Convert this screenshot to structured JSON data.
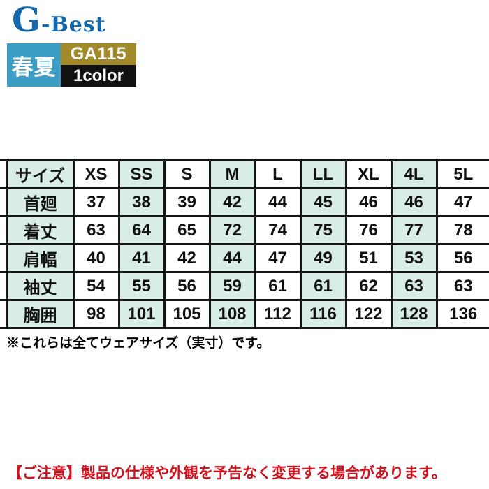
{
  "colors": {
    "logo-blue": "#1467AB",
    "teal": "#3E9DC2",
    "gold": "#A28A2C",
    "black-badge": "#111111",
    "mint": "#D9EDE7",
    "border": "#151515",
    "red": "#D1121F"
  },
  "header": {
    "logo_text": "G-Best",
    "season_label": "春夏",
    "product_code": "GA115",
    "color_count": "1color"
  },
  "size_table": {
    "columns": [
      "サイズ",
      "XS",
      "SS",
      "S",
      "M",
      "L",
      "LL",
      "XL",
      "4L",
      "5L"
    ],
    "rows": [
      {
        "label": "首廻",
        "values": [
          "37",
          "38",
          "39",
          "42",
          "44",
          "45",
          "46",
          "46",
          "47"
        ]
      },
      {
        "label": "着丈",
        "values": [
          "63",
          "64",
          "65",
          "72",
          "74",
          "75",
          "76",
          "77",
          "78"
        ]
      },
      {
        "label": "肩幅",
        "values": [
          "40",
          "41",
          "42",
          "44",
          "47",
          "49",
          "51",
          "53",
          "56"
        ]
      },
      {
        "label": "袖丈",
        "values": [
          "54",
          "55",
          "56",
          "59",
          "61",
          "61",
          "62",
          "63",
          "63"
        ]
      },
      {
        "label": "胸囲",
        "values": [
          "98",
          "101",
          "105",
          "108",
          "112",
          "116",
          "122",
          "128",
          "136"
        ]
      }
    ]
  },
  "notes": {
    "size_note": "※これらは全てウェアサイズ（実寸）です。",
    "caution_note": "【ご注意】製品の仕様や外観を予告なく変更する場合があります。"
  }
}
